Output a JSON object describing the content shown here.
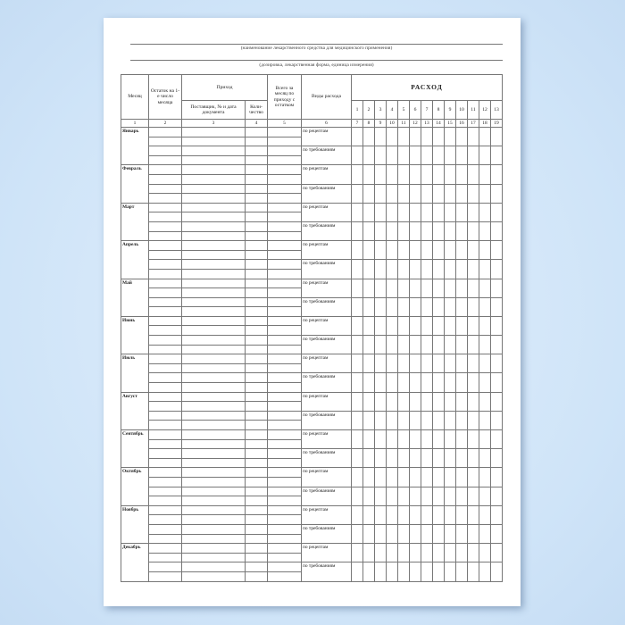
{
  "header": {
    "name_caption": "(наименование лекарственного средства для медицинского применения)",
    "dosage_caption": "(дозировка, лекарственная форма, единица измерения)"
  },
  "table": {
    "col_month": "Месяц",
    "col_balance": "Остаток на 1-е число месяца",
    "col_income": "Приход",
    "col_supplier": "Поставщик, № и дата документа",
    "col_qty": "Коли-чество",
    "col_total": "Всего за месяц по приходу с остатком",
    "col_kinds": "Виды расхода",
    "col_expense": "РАСХОД",
    "expense_subcols": [
      "1",
      "2",
      "3",
      "4",
      "5",
      "6",
      "7",
      "8",
      "9",
      "10",
      "11",
      "12",
      "13"
    ],
    "column_numbers": [
      "1",
      "2",
      "3",
      "4",
      "5",
      "6",
      "7",
      "8",
      "9",
      "10",
      "11",
      "12",
      "13",
      "14",
      "15",
      "16",
      "17",
      "18",
      "19"
    ],
    "kind_recipe": "по рецептам",
    "kind_demand": "по требованиям",
    "months": [
      "Январь",
      "Февраль",
      "Март",
      "Апрель",
      "Май",
      "Июнь",
      "Июль",
      "Август",
      "Сентябрь",
      "Октябрь",
      "Ноябрь",
      "Декабрь"
    ]
  }
}
